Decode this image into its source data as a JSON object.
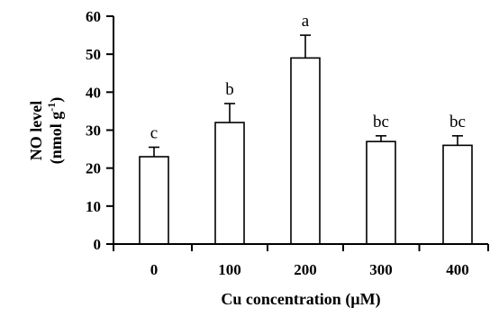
{
  "chart_data": {
    "type": "bar",
    "categories": [
      "0",
      "100",
      "200",
      "300",
      "400"
    ],
    "values": [
      23,
      32,
      49,
      27,
      26
    ],
    "errors": [
      2.5,
      5,
      6,
      1.5,
      2.5
    ],
    "significance_labels": [
      "c",
      "b",
      "a",
      "bc",
      "bc"
    ],
    "xlabel": "Cu concentration (µM)",
    "ylabel_line1": "NO level",
    "ylabel_line2_prefix": "(nmol g",
    "ylabel_line2_sup": "-1",
    "ylabel_line2_suffix": ")",
    "ylim": [
      0,
      60
    ],
    "yticks": [
      0,
      10,
      20,
      30,
      40,
      50,
      60
    ],
    "grid": false,
    "legend": "none",
    "bar_fill": "#ffffff",
    "bar_stroke": "#000000"
  }
}
